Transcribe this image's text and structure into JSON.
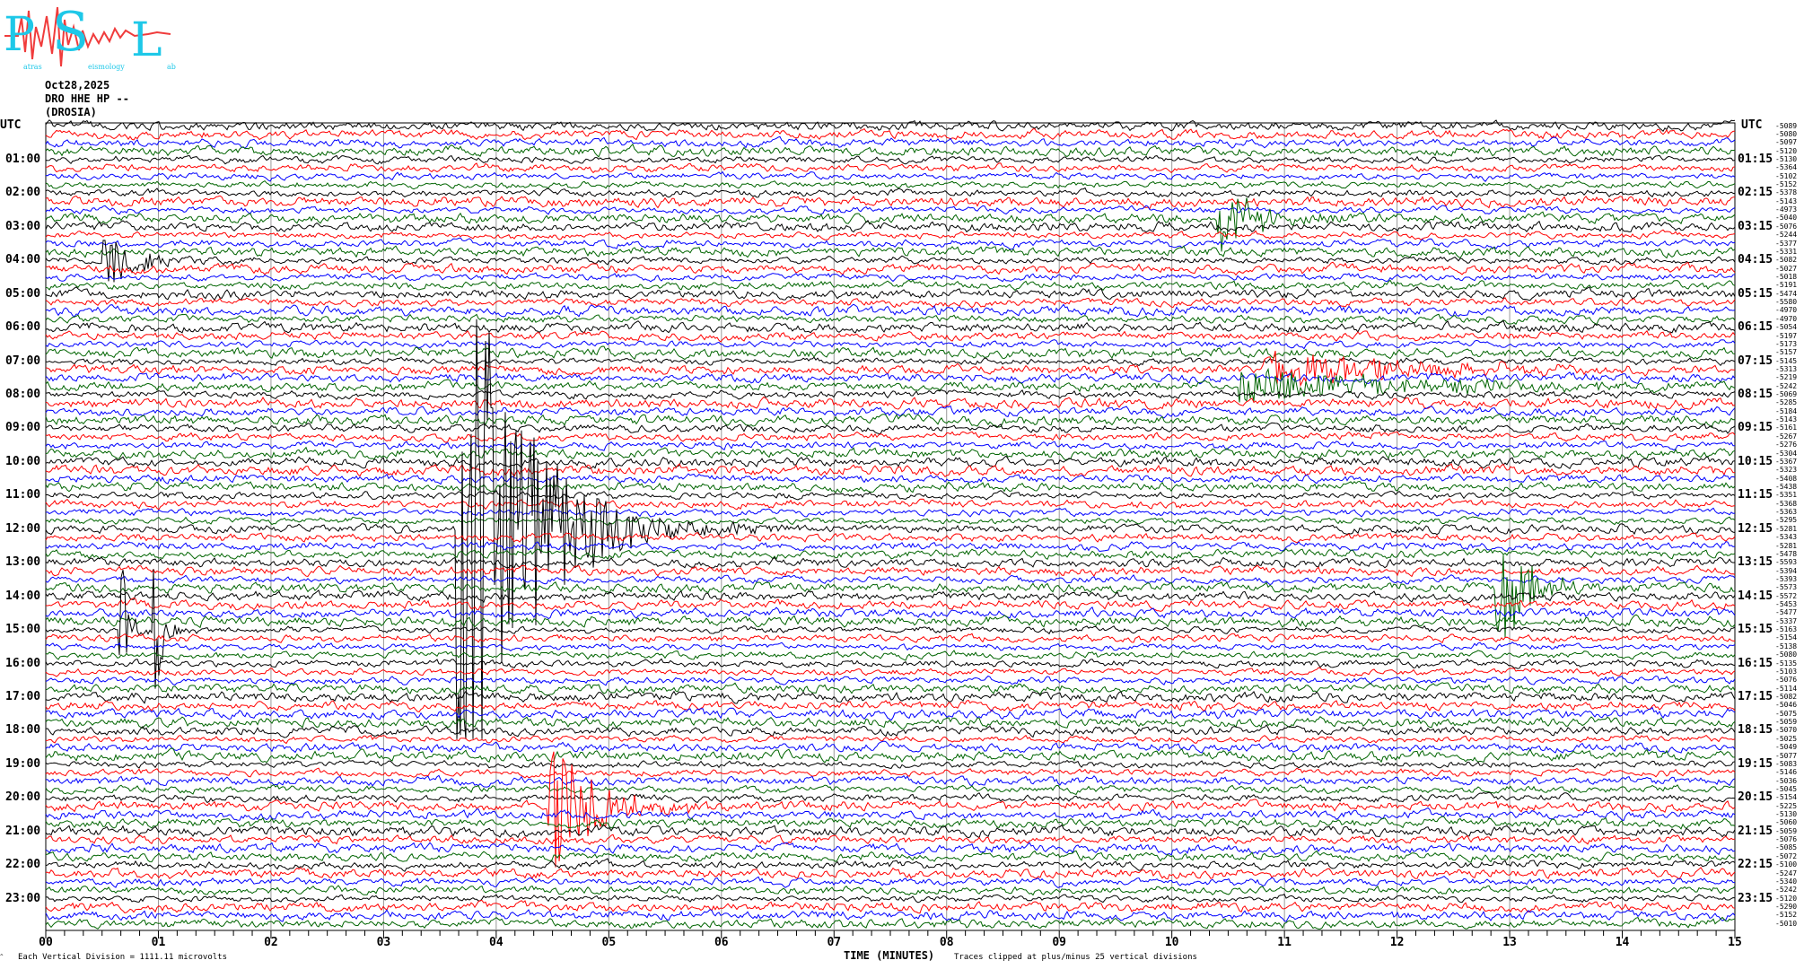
{
  "logo": {
    "text": "PSL",
    "full_name": "Patras Seismology Lab",
    "colors": {
      "letters": "#1ec8e8",
      "wave": "#f03c3c"
    }
  },
  "header": {
    "date": "Oct28,2025",
    "channel": "DRO HHE HP --",
    "station": "(DROSIA)"
  },
  "left_axis": {
    "title": "UTC",
    "labels": [
      "01:00",
      "02:00",
      "03:00",
      "04:00",
      "05:00",
      "06:00",
      "07:00",
      "08:00",
      "09:00",
      "10:00",
      "11:00",
      "12:00",
      "13:00",
      "14:00",
      "15:00",
      "16:00",
      "17:00",
      "18:00",
      "19:00",
      "20:00",
      "21:00",
      "22:00",
      "23:00"
    ]
  },
  "right_axis": {
    "title": "UTC",
    "labels": [
      "01:15",
      "02:15",
      "03:15",
      "04:15",
      "05:15",
      "06:15",
      "07:15",
      "08:15",
      "09:15",
      "10:15",
      "11:15",
      "12:15",
      "13:15",
      "14:15",
      "15:15",
      "16:15",
      "17:15",
      "18:15",
      "19:15",
      "20:15",
      "21:15",
      "22:15",
      "23:15"
    ]
  },
  "footer": {
    "scale_note": "Each Vertical Division = 1111.11 microvolts",
    "xlabel": "TIME (MINUTES)",
    "clip_note": "Traces clipped at plus/minus 25 vertical divisions"
  },
  "chart_data": {
    "type": "line",
    "subtype": "helicorder",
    "xlabel": "TIME (MINUTES)",
    "xlim": [
      0,
      15
    ],
    "x_ticks": [
      "00",
      "01",
      "02",
      "03",
      "04",
      "05",
      "06",
      "07",
      "08",
      "09",
      "10",
      "11",
      "12",
      "13",
      "14",
      "15"
    ],
    "minor_ticks_per_minute": 6,
    "grid": "vertical lines every minute",
    "rows_per_hour": 4,
    "row_minutes": 15,
    "trace_colors": [
      "#000000",
      "#ff0000",
      "#0000ff",
      "#006400"
    ],
    "clip_divisions": 25,
    "row_offsets": [
      -5089,
      -5080,
      -5097,
      -5120,
      -5130,
      -5364,
      -5102,
      -5152,
      -5378,
      -5143,
      -4973,
      -5040,
      -5076,
      -5244,
      -5377,
      -5331,
      -5082,
      -5027,
      -5018,
      -5191,
      -5474,
      -5580,
      -4970,
      -4970,
      -5054,
      -5197,
      -5173,
      -5157,
      -5145,
      -5313,
      -5219,
      -5242,
      -5069,
      -5285,
      -5184,
      -5143,
      -5161,
      -5267,
      -5276,
      -5304,
      -5367,
      -5323,
      -5408,
      -5438,
      -5351,
      -5368,
      -5363,
      -5295,
      -5281,
      -5343,
      -5281,
      -5478,
      -5593,
      -5394,
      -5393,
      -5573,
      -5572,
      -5453,
      -5477,
      -5337,
      -5163,
      -5154,
      -5138,
      -5080,
      -5135,
      -5103,
      -5076,
      -5114,
      -5082,
      -5046,
      -5075,
      -5059,
      -5070,
      -5025,
      -5049,
      -5077,
      -5083,
      -5146,
      -5036,
      -5045,
      -5154,
      -5225,
      -5130,
      -5060,
      -5059,
      -5076,
      -5085,
      -5072,
      -5100,
      -5247,
      -5340,
      -5242,
      -5120,
      -5290,
      -5152,
      -5010
    ],
    "events": [
      {
        "row_start": "02:45",
        "minute": 10.4,
        "amplitude_divisions": 5,
        "duration_min": 1.0
      },
      {
        "row_start": "04:00",
        "minute": 0.5,
        "amplitude_divisions": 4,
        "duration_min": 0.8
      },
      {
        "row_start": "07:15",
        "minute": 10.8,
        "amplitude_divisions": 2.5,
        "duration_min": 3.5
      },
      {
        "row_start": "07:45",
        "minute": 10.6,
        "amplitude_divisions": 2.5,
        "duration_min": 3.8
      },
      {
        "row_start": "12:00",
        "minute": 3.65,
        "amplitude_divisions": 40,
        "duration_min": 1.6
      },
      {
        "row_start": "15:00",
        "minute": 0.65,
        "amplitude_divisions": 12,
        "duration_min": 0.2
      },
      {
        "row_start": "15:00",
        "minute": 0.95,
        "amplitude_divisions": 14,
        "duration_min": 0.2
      },
      {
        "row_start": "13:45",
        "minute": 12.85,
        "amplitude_divisions": 8,
        "duration_min": 0.9
      },
      {
        "row_start": "20:15",
        "minute": 4.45,
        "amplitude_divisions": 9,
        "duration_min": 1.2
      }
    ]
  }
}
